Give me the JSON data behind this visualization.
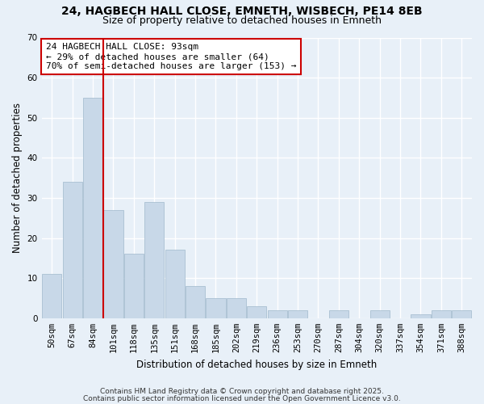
{
  "title_line1": "24, HAGBECH HALL CLOSE, EMNETH, WISBECH, PE14 8EB",
  "title_line2": "Size of property relative to detached houses in Emneth",
  "xlabel": "Distribution of detached houses by size in Emneth",
  "ylabel": "Number of detached properties",
  "categories": [
    "50sqm",
    "67sqm",
    "84sqm",
    "101sqm",
    "118sqm",
    "135sqm",
    "151sqm",
    "168sqm",
    "185sqm",
    "202sqm",
    "219sqm",
    "236sqm",
    "253sqm",
    "270sqm",
    "287sqm",
    "304sqm",
    "320sqm",
    "337sqm",
    "354sqm",
    "371sqm",
    "388sqm"
  ],
  "values": [
    11,
    34,
    55,
    27,
    16,
    29,
    17,
    8,
    5,
    5,
    3,
    2,
    2,
    0,
    2,
    0,
    2,
    0,
    1,
    2,
    2
  ],
  "bar_color": "#c8d8e8",
  "bar_edge_color": "#a0b8cc",
  "vline_x_index": 2.5,
  "vline_color": "#cc0000",
  "annotation_title": "24 HAGBECH HALL CLOSE: 93sqm",
  "annotation_line2": "← 29% of detached houses are smaller (64)",
  "annotation_line3": "70% of semi-detached houses are larger (153) →",
  "annotation_box_color": "#ffffff",
  "annotation_border_color": "#cc0000",
  "ylim": [
    0,
    70
  ],
  "yticks": [
    0,
    10,
    20,
    30,
    40,
    50,
    60,
    70
  ],
  "footnote1": "Contains HM Land Registry data © Crown copyright and database right 2025.",
  "footnote2": "Contains public sector information licensed under the Open Government Licence v3.0.",
  "background_color": "#e8f0f8",
  "grid_color": "#ffffff",
  "title_fontsize": 10,
  "subtitle_fontsize": 9,
  "axis_label_fontsize": 8.5,
  "tick_fontsize": 7.5,
  "annotation_fontsize": 8,
  "footnote_fontsize": 6.5
}
